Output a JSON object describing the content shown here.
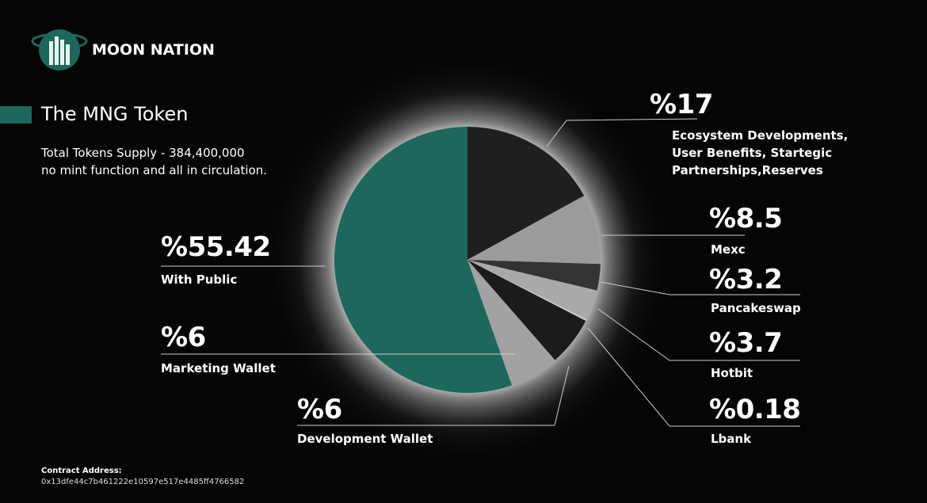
{
  "brand": "MOON NATION",
  "heading": "The MNG Token",
  "supply_lines": [
    "Total Tokens Supply - 384,400,000",
    "no mint function and all in circulation."
  ],
  "contract": {
    "label": "Contract Address:",
    "address": "0x13dfe44c7b461222e10597e517e4485ff4766582"
  },
  "chart_data": {
    "type": "pie",
    "categories": [
      "Ecosystem Developments, User Benefits, Startegic Partnerships,Reserves",
      "Mexc",
      "Pancakeswap",
      "Hotbit",
      "Lbank",
      "Development Wallet",
      "Marketing Wallet",
      "With Public"
    ],
    "values": [
      17,
      8.5,
      3.2,
      3.7,
      0.18,
      6,
      6,
      55.42
    ],
    "value_labels": [
      "%17",
      "%8.5",
      "%3.2",
      "%3.7",
      "%0.18",
      "%6",
      "%6",
      "%55.42"
    ],
    "colors": [
      "#1f1f1f",
      "#9b9b9b",
      "#333333",
      "#a9a9a9",
      "#d4d4d4",
      "#1b1b1b",
      "#a2a2a2",
      "#1e675b"
    ]
  }
}
